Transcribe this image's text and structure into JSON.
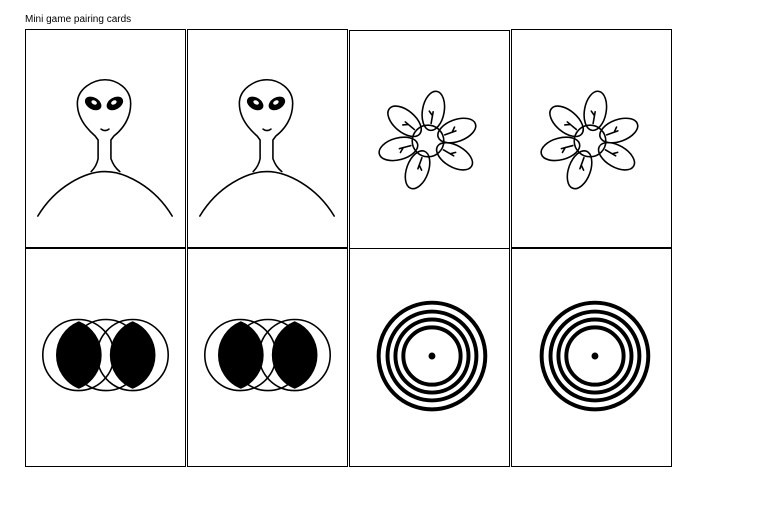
{
  "page": {
    "title": "Mini game pairing cards"
  },
  "colors": {
    "ink": "#000000",
    "paper": "#ffffff"
  },
  "cards": [
    {
      "symbol": "alien-icon"
    },
    {
      "symbol": "alien-icon"
    },
    {
      "symbol": "flower-icon"
    },
    {
      "symbol": "flower-icon"
    },
    {
      "symbol": "overlapping-circles-icon"
    },
    {
      "symbol": "overlapping-circles-icon"
    },
    {
      "symbol": "concentric-circles-icon"
    },
    {
      "symbol": "concentric-circles-icon"
    }
  ]
}
